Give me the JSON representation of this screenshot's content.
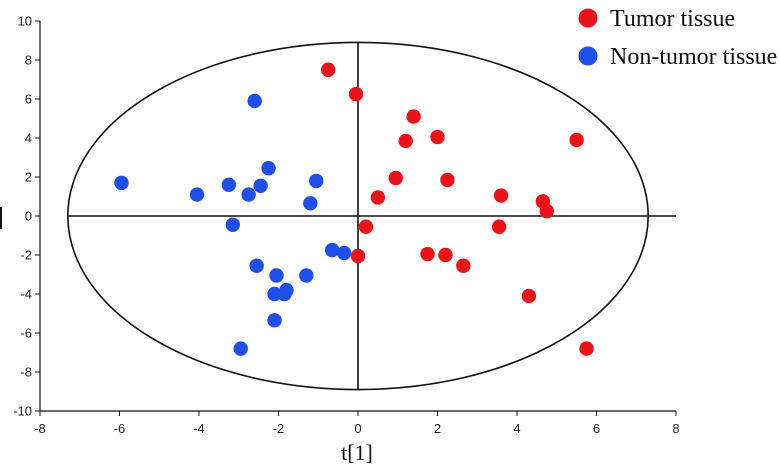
{
  "chart_data": {
    "type": "scatter",
    "xlabel": "t[1]",
    "ylabel": "",
    "xlim": [
      -8,
      8
    ],
    "ylim": [
      -10,
      10
    ],
    "x_ticks": [
      "-8",
      "-6",
      "-4",
      "-2",
      "0",
      "2",
      "4",
      "6",
      "8"
    ],
    "y_ticks": [
      "10",
      "8",
      "6",
      "4",
      "2",
      "0",
      "-2",
      "-4",
      "-6",
      "-8",
      "-10"
    ],
    "grid": false,
    "legend_position": "top-right",
    "ellipse": {
      "center": [
        0,
        0
      ],
      "radii": [
        7.3,
        8.9
      ]
    },
    "series": [
      {
        "name": "Tumor tissue",
        "color": "#e8141a",
        "points": [
          [
            -0.75,
            7.5
          ],
          [
            -0.05,
            6.25
          ],
          [
            1.4,
            5.1
          ],
          [
            1.2,
            3.85
          ],
          [
            2.0,
            4.05
          ],
          [
            5.5,
            3.9
          ],
          [
            0.95,
            1.95
          ],
          [
            2.25,
            1.85
          ],
          [
            0.5,
            0.95
          ],
          [
            3.6,
            1.05
          ],
          [
            4.65,
            0.75
          ],
          [
            4.75,
            0.25
          ],
          [
            0.2,
            -0.55
          ],
          [
            3.55,
            -0.55
          ],
          [
            0.0,
            -2.05
          ],
          [
            1.75,
            -1.95
          ],
          [
            2.2,
            -2.0
          ],
          [
            2.65,
            -2.55
          ],
          [
            4.3,
            -4.1
          ],
          [
            5.75,
            -6.8
          ]
        ]
      },
      {
        "name": "Non-tumor tissue",
        "color": "#1f4fe6",
        "points": [
          [
            -2.6,
            5.9
          ],
          [
            -5.95,
            1.7
          ],
          [
            -4.05,
            1.1
          ],
          [
            -3.25,
            1.6
          ],
          [
            -2.45,
            1.55
          ],
          [
            -2.75,
            1.1
          ],
          [
            -2.25,
            2.45
          ],
          [
            -1.05,
            1.8
          ],
          [
            -1.2,
            0.65
          ],
          [
            -3.15,
            -0.45
          ],
          [
            -0.65,
            -1.75
          ],
          [
            -0.35,
            -1.9
          ],
          [
            -2.55,
            -2.55
          ],
          [
            -2.05,
            -3.05
          ],
          [
            -1.3,
            -3.05
          ],
          [
            -2.1,
            -4.0
          ],
          [
            -1.85,
            -4.0
          ],
          [
            -1.8,
            -3.8
          ],
          [
            -2.1,
            -5.35
          ],
          [
            -2.95,
            -6.8
          ]
        ]
      }
    ]
  }
}
